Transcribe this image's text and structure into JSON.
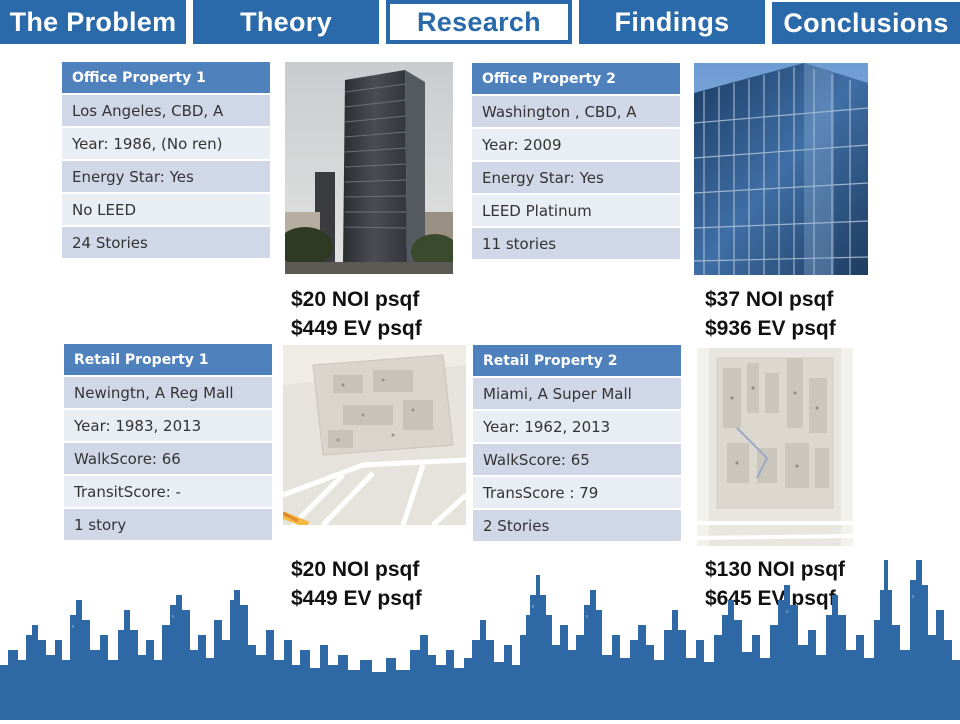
{
  "nav": {
    "tabs": [
      {
        "label": "The Problem"
      },
      {
        "label": "Theory"
      },
      {
        "label": "Research"
      },
      {
        "label": "Findings"
      },
      {
        "label": "Conclusions"
      }
    ],
    "active_index": 2
  },
  "properties": [
    {
      "title": "Office Property 1",
      "rows": [
        "Los Angeles, CBD, A",
        "Year: 1986, (No ren)",
        "Energy Star: Yes",
        "No LEED",
        "24 Stories"
      ],
      "noi": "$20 NOI psqf",
      "ev": "$449 EV psqf"
    },
    {
      "title": "Office Property 2",
      "rows": [
        "Washington , CBD, A",
        "Year: 2009",
        "Energy Star: Yes",
        "LEED Platinum",
        "11 stories"
      ],
      "noi": "$37 NOI psqf",
      "ev": "$936 EV psqf"
    },
    {
      "title": "Retail Property 1",
      "rows": [
        "Newingtn, A Reg Mall",
        "Year: 1983, 2013",
        "WalkScore: 66",
        "TransitScore: -",
        "1 story"
      ],
      "noi": "$20 NOI psqf",
      "ev": "$449 EV psqf"
    },
    {
      "title": "Retail Property 2",
      "rows": [
        "Miami, A Super Mall",
        "Year: 1962, 2013",
        "WalkScore: 65",
        "TransScore : 79",
        "2 Stories"
      ],
      "noi": "$130 NOI psqf",
      "ev": "$645 EV psqf"
    }
  ],
  "colors": {
    "nav_blue": "#2a6aaa",
    "table_header": "#4f81bd",
    "row_dark": "#d0d8e8",
    "row_light": "#e9edf4",
    "skyline": "#2f69a5"
  }
}
